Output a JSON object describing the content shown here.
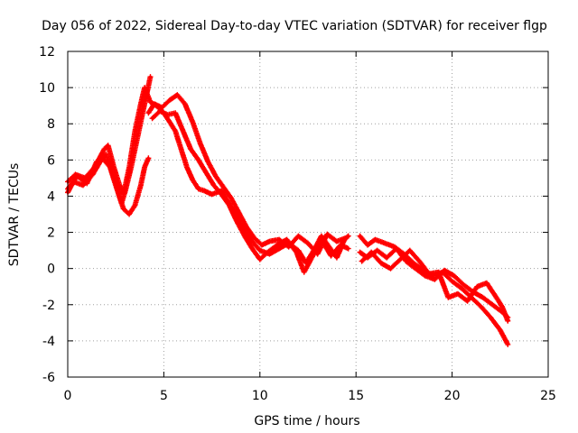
{
  "chart_data": {
    "type": "scatter",
    "title": "Day 056 of 2022, Sidereal Day-to-day VTEC variation (SDTVAR) for receiver flgp",
    "xlabel": "GPS time / hours",
    "ylabel": "SDTVAR / TECUs",
    "xlim": [
      0,
      25
    ],
    "ylim": [
      -6,
      12
    ],
    "xticks": [
      0,
      5,
      10,
      15,
      20,
      25
    ],
    "yticks": [
      -6,
      -4,
      -2,
      0,
      2,
      4,
      6,
      8,
      10,
      12
    ],
    "grid": true,
    "marker": "+",
    "color": "#ff0000",
    "series": [
      {
        "name": "track-1",
        "points": [
          [
            0.0,
            4.2
          ],
          [
            0.3,
            4.8
          ],
          [
            0.8,
            4.6
          ],
          [
            1.3,
            5.2
          ],
          [
            1.8,
            6.1
          ],
          [
            2.2,
            5.6
          ],
          [
            2.5,
            4.6
          ],
          [
            2.8,
            3.6
          ],
          [
            3.0,
            4.3
          ],
          [
            3.3,
            5.6
          ],
          [
            3.6,
            7.1
          ],
          [
            3.9,
            8.6
          ],
          [
            4.1,
            9.6
          ],
          [
            4.3,
            10.6
          ]
        ]
      },
      {
        "name": "track-2",
        "points": [
          [
            0.0,
            4.8
          ],
          [
            0.4,
            5.2
          ],
          [
            0.9,
            5.0
          ],
          [
            1.4,
            5.6
          ],
          [
            1.9,
            6.6
          ],
          [
            2.1,
            6.8
          ],
          [
            2.4,
            5.6
          ],
          [
            2.7,
            4.6
          ],
          [
            2.9,
            4.1
          ],
          [
            3.2,
            5.6
          ],
          [
            3.5,
            7.6
          ],
          [
            3.8,
            9.1
          ],
          [
            4.0,
            10.0
          ],
          [
            4.3,
            9.2
          ],
          [
            4.6,
            9.0
          ],
          [
            5.0,
            8.6
          ],
          [
            5.3,
            8.1
          ],
          [
            5.6,
            7.6
          ],
          [
            5.9,
            6.6
          ],
          [
            6.2,
            5.6
          ],
          [
            6.5,
            4.9
          ],
          [
            6.8,
            4.4
          ],
          [
            7.1,
            4.3
          ],
          [
            7.5,
            4.1
          ],
          [
            8.0,
            4.3
          ],
          [
            8.4,
            3.6
          ],
          [
            8.8,
            2.9
          ],
          [
            9.2,
            2.1
          ],
          [
            9.6,
            1.5
          ],
          [
            10.0,
            1.0
          ],
          [
            10.5,
            0.8
          ],
          [
            11.0,
            1.1
          ],
          [
            11.5,
            1.4
          ],
          [
            12.0,
            1.0
          ],
          [
            12.4,
            0.3
          ],
          [
            12.8,
            1.0
          ],
          [
            13.2,
            1.8
          ],
          [
            13.6,
            1.2
          ],
          [
            14.0,
            0.6
          ],
          [
            14.4,
            1.6
          ],
          [
            14.6,
            1.8
          ]
        ]
      },
      {
        "name": "track-3",
        "points": [
          [
            0.0,
            4.4
          ],
          [
            0.5,
            5.1
          ],
          [
            1.0,
            4.7
          ],
          [
            1.5,
            5.9
          ],
          [
            2.0,
            6.3
          ],
          [
            2.3,
            5.3
          ],
          [
            2.6,
            4.3
          ],
          [
            2.9,
            3.3
          ],
          [
            3.2,
            3.0
          ],
          [
            3.5,
            3.5
          ],
          [
            3.8,
            4.6
          ],
          [
            4.0,
            5.6
          ],
          [
            4.2,
            6.1
          ]
        ]
      },
      {
        "name": "track-4",
        "points": [
          [
            4.2,
            8.6
          ],
          [
            4.5,
            9.1
          ],
          [
            4.9,
            8.9
          ],
          [
            5.3,
            9.3
          ],
          [
            5.7,
            9.6
          ],
          [
            6.1,
            9.1
          ],
          [
            6.5,
            8.1
          ],
          [
            6.9,
            6.9
          ],
          [
            7.3,
            5.9
          ],
          [
            7.7,
            5.1
          ],
          [
            8.1,
            4.5
          ],
          [
            8.5,
            3.9
          ],
          [
            8.9,
            3.1
          ],
          [
            9.3,
            2.3
          ],
          [
            9.7,
            1.7
          ],
          [
            10.1,
            1.3
          ],
          [
            10.5,
            1.5
          ],
          [
            11.0,
            1.6
          ],
          [
            11.5,
            1.2
          ],
          [
            12.0,
            1.8
          ],
          [
            12.5,
            1.4
          ],
          [
            13.0,
            0.8
          ],
          [
            13.5,
            1.9
          ],
          [
            14.0,
            1.5
          ],
          [
            14.5,
            1.7
          ]
        ]
      },
      {
        "name": "track-5",
        "points": [
          [
            4.4,
            8.3
          ],
          [
            4.8,
            8.7
          ],
          [
            5.2,
            8.5
          ],
          [
            5.6,
            8.6
          ],
          [
            6.0,
            7.6
          ],
          [
            6.4,
            6.6
          ],
          [
            6.8,
            6.0
          ],
          [
            7.2,
            5.3
          ],
          [
            7.6,
            4.6
          ],
          [
            8.0,
            4.1
          ],
          [
            8.4,
            3.5
          ],
          [
            8.8,
            2.6
          ],
          [
            9.2,
            1.8
          ],
          [
            9.6,
            1.1
          ],
          [
            10.0,
            0.5
          ],
          [
            10.4,
            0.9
          ],
          [
            10.9,
            1.3
          ],
          [
            11.4,
            1.6
          ],
          [
            11.9,
            0.9
          ],
          [
            12.3,
            -0.2
          ],
          [
            12.7,
            0.6
          ],
          [
            13.2,
            1.6
          ],
          [
            13.7,
            0.7
          ],
          [
            14.2,
            1.3
          ],
          [
            14.6,
            1.1
          ]
        ]
      },
      {
        "name": "track-6",
        "points": [
          [
            15.2,
            1.8
          ],
          [
            15.6,
            1.3
          ],
          [
            16.0,
            1.6
          ],
          [
            16.5,
            1.4
          ],
          [
            17.0,
            1.2
          ],
          [
            17.5,
            0.8
          ],
          [
            18.0,
            0.3
          ],
          [
            18.5,
            -0.1
          ],
          [
            19.0,
            -0.4
          ],
          [
            19.5,
            -0.2
          ],
          [
            20.0,
            -0.7
          ],
          [
            20.5,
            -1.1
          ],
          [
            21.0,
            -1.6
          ],
          [
            21.5,
            -2.1
          ],
          [
            22.0,
            -2.7
          ],
          [
            22.5,
            -3.4
          ],
          [
            22.9,
            -4.2
          ]
        ]
      },
      {
        "name": "track-7",
        "points": [
          [
            15.2,
            0.9
          ],
          [
            15.6,
            0.6
          ],
          [
            16.1,
            1.0
          ],
          [
            16.6,
            0.6
          ],
          [
            17.1,
            1.1
          ],
          [
            17.6,
            0.4
          ],
          [
            18.1,
            0.0
          ],
          [
            18.6,
            -0.4
          ],
          [
            19.1,
            -0.6
          ],
          [
            19.6,
            -0.1
          ],
          [
            20.1,
            -0.4
          ],
          [
            20.6,
            -0.9
          ],
          [
            21.1,
            -1.3
          ],
          [
            21.6,
            -1.6
          ],
          [
            22.1,
            -2.0
          ],
          [
            22.6,
            -2.4
          ],
          [
            22.9,
            -2.7
          ]
        ]
      },
      {
        "name": "track-8",
        "points": [
          [
            15.3,
            0.4
          ],
          [
            15.8,
            0.9
          ],
          [
            16.3,
            0.3
          ],
          [
            16.8,
            0.0
          ],
          [
            17.3,
            0.5
          ],
          [
            17.8,
            1.0
          ],
          [
            18.3,
            0.4
          ],
          [
            18.8,
            -0.3
          ],
          [
            19.3,
            -0.2
          ],
          [
            19.8,
            -1.6
          ],
          [
            20.3,
            -1.4
          ],
          [
            20.8,
            -1.8
          ],
          [
            21.3,
            -1.0
          ],
          [
            21.8,
            -0.8
          ],
          [
            22.3,
            -1.6
          ],
          [
            22.6,
            -2.1
          ],
          [
            22.9,
            -2.9
          ]
        ]
      }
    ]
  }
}
